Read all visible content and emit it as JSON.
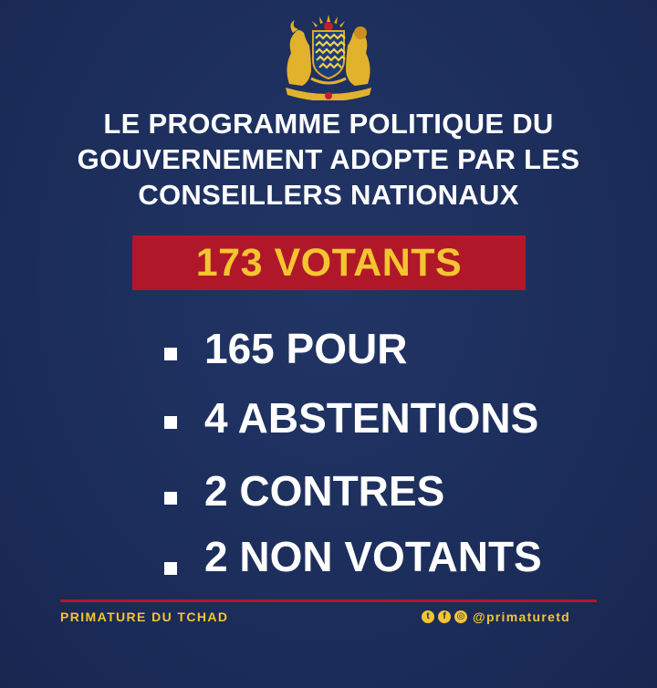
{
  "colors": {
    "background": "#1d2f5e",
    "accent_red": "#b0182a",
    "accent_gold": "#f4c531",
    "text": "#ffffff"
  },
  "emblem": {
    "name": "chad-coat-of-arms",
    "motto": "UNITÉ · TRAVAIL · PROGRÈS"
  },
  "title_lines": [
    "LE PROGRAMME POLITIQUE DU",
    "GOUVERNEMENT ADOPTE PAR LES",
    "CONSEILLERS NATIONAUX"
  ],
  "total": "173 VOTANTS",
  "results": [
    "165 POUR",
    "4 ABSTENTIONS",
    "2 CONTRES",
    "2 NON VOTANTS"
  ],
  "footer": {
    "left": "PRIMATURE DU TCHAD",
    "social_icons": [
      "twitter-icon",
      "facebook-icon",
      "instagram-icon"
    ],
    "handle": "@primaturetd"
  }
}
